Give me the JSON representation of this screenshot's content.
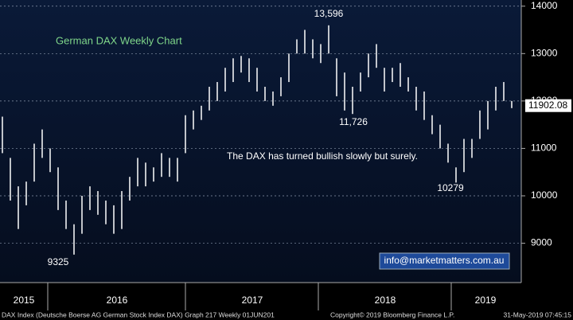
{
  "chart_data": {
    "type": "hilo",
    "title": "German DAX Weekly Chart",
    "annotations": [
      "13,596",
      "11,726",
      "10279",
      "9325",
      "The DAX has turned bullish slowly but surely."
    ],
    "contact": "info@marketmatters.com.au",
    "last_price": 11902.08,
    "x_labels": [
      "2015",
      "2016",
      "2017",
      "2018",
      "2019"
    ],
    "footer": [
      "DAX Index (Deutsche Boerse AG German Stock Index DAX) Graph 217  Weekly 01JUN201",
      "Copyright© 2019 Bloomberg Finance L.P.",
      "31-May-2019 07:45:15"
    ],
    "high": [
      11670,
      10800,
      10200,
      10300,
      11100,
      11400,
      11000,
      10600,
      9900,
      9400,
      10000,
      10200,
      10100,
      9900,
      9800,
      10100,
      10400,
      10800,
      10700,
      10600,
      10900,
      10800,
      10800,
      11700,
      11800,
      11900,
      12300,
      12400,
      12700,
      12900,
      12950,
      12900,
      12700,
      12300,
      12200,
      12500,
      13000,
      13300,
      13500,
      13300,
      13200,
      13596,
      12900,
      12600,
      12300,
      12600,
      13000,
      13200,
      12700,
      12700,
      12800,
      12500,
      12300,
      12200,
      11700,
      11500,
      11100,
      10600,
      11200,
      11200,
      11800,
      12000,
      12300,
      12400,
      12000
    ],
    "low": [
      10900,
      9900,
      9300,
      9800,
      10300,
      10800,
      10500,
      9700,
      9300,
      8760,
      9200,
      9700,
      9600,
      9400,
      9200,
      9300,
      9900,
      10200,
      10200,
      10300,
      10400,
      10400,
      10300,
      10900,
      11400,
      11600,
      11800,
      12000,
      12200,
      12400,
      12600,
      12400,
      12200,
      12000,
      11900,
      12100,
      12400,
      13000,
      13000,
      12900,
      12800,
      13000,
      12100,
      11800,
      11726,
      12200,
      12500,
      12700,
      12200,
      12400,
      12300,
      12200,
      11800,
      11600,
      11300,
      11000,
      10700,
      10279,
      10500,
      10800,
      11200,
      11400,
      11800,
      12000,
      11850
    ],
    "ylim": [
      8170,
      14130
    ],
    "yticks": [
      9000,
      10000,
      11000,
      12000,
      13000,
      14000
    ],
    "grid": true,
    "color": "#ffffff"
  }
}
